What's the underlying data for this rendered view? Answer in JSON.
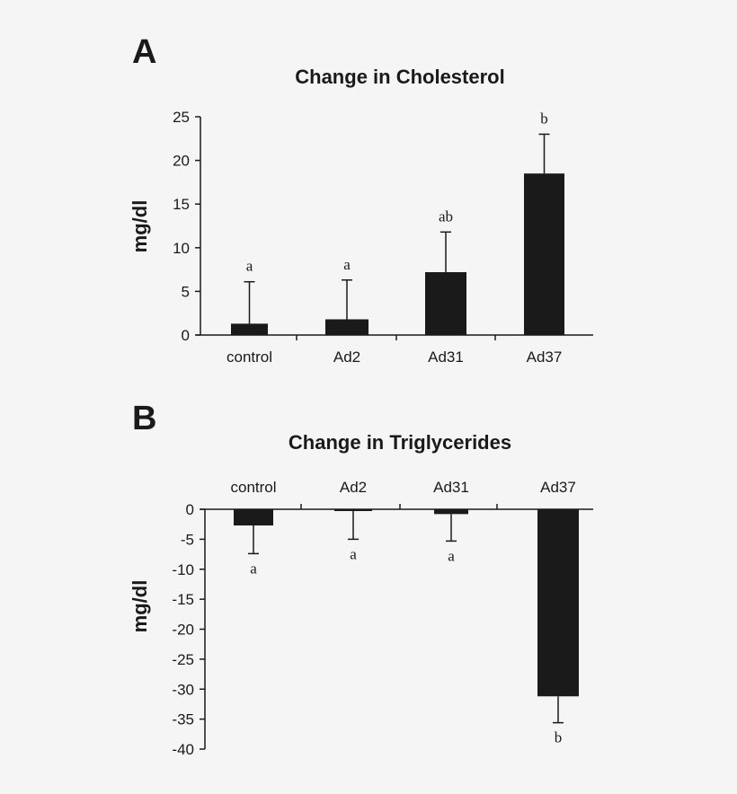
{
  "chart_data": [
    {
      "panel_label": "A",
      "type": "bar",
      "title": "Change in Cholesterol",
      "ylabel": "mg/dl",
      "xlabel": "",
      "categories": [
        "control",
        "Ad2",
        "Ad31",
        "Ad37"
      ],
      "values": [
        1.3,
        1.8,
        7.2,
        18.5
      ],
      "error_upper": [
        6.1,
        6.3,
        11.8,
        23.0
      ],
      "annotations": [
        "a",
        "a",
        "ab",
        "b"
      ],
      "ylim": [
        0,
        25
      ],
      "yticks": [
        "0",
        "5",
        "10",
        "15",
        "20",
        "25"
      ],
      "category_axis_position": "bottom",
      "bar_color": "#1a1a1a",
      "grid": false
    },
    {
      "panel_label": "B",
      "type": "bar",
      "title": "Change in Triglycerides",
      "ylabel": "mg/dl",
      "xlabel": "",
      "categories": [
        "control",
        "Ad2",
        "Ad31",
        "Ad37"
      ],
      "values": [
        -2.7,
        -0.3,
        -0.8,
        -31.2
      ],
      "error_lower": [
        -7.4,
        -5.0,
        -5.3,
        -35.6
      ],
      "annotations": [
        "a",
        "a",
        "a",
        "b"
      ],
      "ylim": [
        -40,
        0
      ],
      "yticks": [
        "0",
        "-5",
        "-10",
        "-15",
        "-20",
        "-25",
        "-30",
        "-35",
        "-40"
      ],
      "category_axis_position": "top",
      "bar_color": "#1a1a1a",
      "grid": false
    }
  ]
}
